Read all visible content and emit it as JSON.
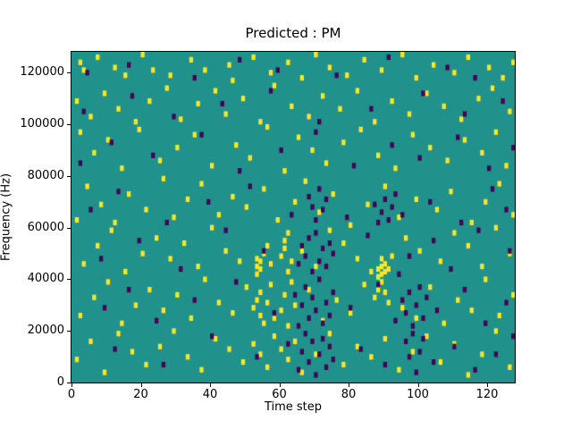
{
  "chart_data": {
    "type": "heatmap",
    "title": "Predicted : PM",
    "xlabel": "Time step",
    "ylabel": "Frequency (Hz)",
    "xlim": [
      0,
      128
    ],
    "ylim": [
      0,
      128000
    ],
    "xticks": [
      0,
      20,
      40,
      60,
      80,
      100,
      120
    ],
    "yticks": [
      0,
      20000,
      40000,
      60000,
      80000,
      100000,
      120000
    ],
    "grid": false,
    "legend": "none",
    "colors": {
      "background": "#21918c",
      "high": "#fde725",
      "low": "#440154"
    },
    "cell_units": {
      "time": "steps",
      "freq": "kHz",
      "cell_freq_height_kHz": 2
    },
    "high_cells_kHz": [
      [
        2,
        123
      ],
      [
        3,
        120
      ],
      [
        7,
        125
      ],
      [
        12,
        121
      ],
      [
        15,
        118
      ],
      [
        20,
        126
      ],
      [
        23,
        120
      ],
      [
        28,
        118
      ],
      [
        34,
        124
      ],
      [
        38,
        120
      ],
      [
        45,
        122
      ],
      [
        46,
        116
      ],
      [
        52,
        125
      ],
      [
        57,
        119
      ],
      [
        62,
        123
      ],
      [
        66,
        117
      ],
      [
        70,
        126
      ],
      [
        74,
        121
      ],
      [
        79,
        118
      ],
      [
        84,
        124
      ],
      [
        89,
        120
      ],
      [
        95,
        126
      ],
      [
        99,
        117
      ],
      [
        104,
        122
      ],
      [
        110,
        119
      ],
      [
        114,
        125
      ],
      [
        120,
        121
      ],
      [
        124,
        117
      ],
      [
        127,
        123
      ],
      [
        1,
        108
      ],
      [
        5,
        102
      ],
      [
        9,
        111
      ],
      [
        13,
        105
      ],
      [
        18,
        100
      ],
      [
        22,
        108
      ],
      [
        27,
        113
      ],
      [
        31,
        101
      ],
      [
        36,
        107
      ],
      [
        41,
        112
      ],
      [
        44,
        103
      ],
      [
        49,
        109
      ],
      [
        54,
        100
      ],
      [
        58,
        114
      ],
      [
        63,
        106
      ],
      [
        68,
        102
      ],
      [
        72,
        110
      ],
      [
        77,
        105
      ],
      [
        82,
        112
      ],
      [
        87,
        100
      ],
      [
        92,
        108
      ],
      [
        97,
        103
      ],
      [
        102,
        111
      ],
      [
        107,
        106
      ],
      [
        112,
        101
      ],
      [
        117,
        109
      ],
      [
        121,
        113
      ],
      [
        126,
        104
      ],
      [
        2,
        96
      ],
      [
        6,
        88
      ],
      [
        10,
        93
      ],
      [
        14,
        82
      ],
      [
        19,
        97
      ],
      [
        25,
        85
      ],
      [
        30,
        90
      ],
      [
        35,
        95
      ],
      [
        40,
        83
      ],
      [
        47,
        91
      ],
      [
        51,
        86
      ],
      [
        56,
        98
      ],
      [
        61,
        81
      ],
      [
        65,
        94
      ],
      [
        69,
        89
      ],
      [
        73,
        84
      ],
      [
        78,
        92
      ],
      [
        83,
        97
      ],
      [
        88,
        87
      ],
      [
        93,
        82
      ],
      [
        98,
        95
      ],
      [
        103,
        90
      ],
      [
        108,
        85
      ],
      [
        113,
        93
      ],
      [
        118,
        88
      ],
      [
        122,
        96
      ],
      [
        125,
        83
      ],
      [
        1,
        62
      ],
      [
        4,
        75
      ],
      [
        8,
        68
      ],
      [
        12,
        61
      ],
      [
        16,
        72
      ],
      [
        21,
        66
      ],
      [
        26,
        78
      ],
      [
        29,
        63
      ],
      [
        33,
        70
      ],
      [
        37,
        76
      ],
      [
        42,
        64
      ],
      [
        46,
        71
      ],
      [
        50,
        67
      ],
      [
        55,
        74
      ],
      [
        59,
        62
      ],
      [
        64,
        69
      ],
      [
        67,
        77
      ],
      [
        71,
        65
      ],
      [
        75,
        72
      ],
      [
        80,
        60
      ],
      [
        85,
        68
      ],
      [
        90,
        75
      ],
      [
        94,
        63
      ],
      [
        99,
        70
      ],
      [
        105,
        66
      ],
      [
        109,
        73
      ],
      [
        115,
        61
      ],
      [
        119,
        69
      ],
      [
        123,
        76
      ],
      [
        127,
        64
      ],
      [
        3,
        45
      ],
      [
        7,
        52
      ],
      [
        11,
        58
      ],
      [
        15,
        42
      ],
      [
        20,
        49
      ],
      [
        24,
        55
      ],
      [
        28,
        47
      ],
      [
        32,
        53
      ],
      [
        36,
        44
      ],
      [
        40,
        59
      ],
      [
        44,
        50
      ],
      [
        48,
        46
      ],
      [
        53,
        41
      ],
      [
        53,
        44
      ],
      [
        53,
        47
      ],
      [
        54,
        43
      ],
      [
        54,
        46
      ],
      [
        55,
        49
      ],
      [
        56,
        52
      ],
      [
        57,
        45
      ],
      [
        60,
        48
      ],
      [
        61,
        51
      ],
      [
        61,
        54
      ],
      [
        62,
        42
      ],
      [
        62,
        57
      ],
      [
        63,
        46
      ],
      [
        66,
        50
      ],
      [
        70,
        44
      ],
      [
        74,
        58
      ],
      [
        78,
        53
      ],
      [
        82,
        47
      ],
      [
        86,
        42
      ],
      [
        88,
        40
      ],
      [
        88,
        43
      ],
      [
        89,
        41
      ],
      [
        89,
        44
      ],
      [
        89,
        47
      ],
      [
        90,
        42
      ],
      [
        90,
        45
      ],
      [
        91,
        43
      ],
      [
        92,
        48
      ],
      [
        96,
        55
      ],
      [
        100,
        50
      ],
      [
        106,
        46
      ],
      [
        110,
        57
      ],
      [
        114,
        52
      ],
      [
        118,
        44
      ],
      [
        122,
        59
      ],
      [
        126,
        49
      ],
      [
        2,
        25
      ],
      [
        6,
        32
      ],
      [
        10,
        38
      ],
      [
        14,
        22
      ],
      [
        18,
        29
      ],
      [
        22,
        35
      ],
      [
        26,
        27
      ],
      [
        30,
        33
      ],
      [
        34,
        24
      ],
      [
        38,
        39
      ],
      [
        42,
        30
      ],
      [
        46,
        26
      ],
      [
        50,
        36
      ],
      [
        52,
        28
      ],
      [
        53,
        31
      ],
      [
        54,
        25
      ],
      [
        54,
        34
      ],
      [
        55,
        22
      ],
      [
        56,
        30
      ],
      [
        57,
        37
      ],
      [
        58,
        24
      ],
      [
        60,
        27
      ],
      [
        61,
        33
      ],
      [
        62,
        21
      ],
      [
        63,
        38
      ],
      [
        64,
        29
      ],
      [
        68,
        35
      ],
      [
        72,
        23
      ],
      [
        76,
        31
      ],
      [
        80,
        26
      ],
      [
        84,
        37
      ],
      [
        87,
        32
      ],
      [
        88,
        35
      ],
      [
        89,
        38
      ],
      [
        90,
        34
      ],
      [
        91,
        30
      ],
      [
        95,
        28
      ],
      [
        99,
        24
      ],
      [
        103,
        36
      ],
      [
        107,
        22
      ],
      [
        111,
        31
      ],
      [
        115,
        27
      ],
      [
        119,
        39
      ],
      [
        123,
        25
      ],
      [
        127,
        33
      ],
      [
        1,
        8
      ],
      [
        5,
        15
      ],
      [
        9,
        3
      ],
      [
        13,
        18
      ],
      [
        17,
        11
      ],
      [
        21,
        6
      ],
      [
        25,
        13
      ],
      [
        29,
        19
      ],
      [
        33,
        9
      ],
      [
        37,
        4
      ],
      [
        41,
        16
      ],
      [
        45,
        12
      ],
      [
        49,
        7
      ],
      [
        52,
        14
      ],
      [
        54,
        10
      ],
      [
        56,
        5
      ],
      [
        58,
        17
      ],
      [
        60,
        12
      ],
      [
        62,
        8
      ],
      [
        64,
        15
      ],
      [
        66,
        3
      ],
      [
        70,
        10
      ],
      [
        74,
        18
      ],
      [
        78,
        6
      ],
      [
        82,
        13
      ],
      [
        86,
        9
      ],
      [
        90,
        16
      ],
      [
        94,
        4
      ],
      [
        98,
        11
      ],
      [
        102,
        17
      ],
      [
        106,
        7
      ],
      [
        110,
        14
      ],
      [
        114,
        2
      ],
      [
        118,
        10
      ],
      [
        122,
        19
      ],
      [
        126,
        5
      ]
    ],
    "low_cells_kHz": [
      [
        4,
        119
      ],
      [
        16,
        122
      ],
      [
        35,
        117
      ],
      [
        48,
        124
      ],
      [
        59,
        120
      ],
      [
        76,
        118
      ],
      [
        91,
        125
      ],
      [
        108,
        121
      ],
      [
        116,
        117
      ],
      [
        3,
        104
      ],
      [
        17,
        110
      ],
      [
        29,
        102
      ],
      [
        43,
        107
      ],
      [
        57,
        112
      ],
      [
        71,
        100
      ],
      [
        86,
        105
      ],
      [
        101,
        111
      ],
      [
        113,
        103
      ],
      [
        124,
        108
      ],
      [
        2,
        84
      ],
      [
        11,
        92
      ],
      [
        23,
        87
      ],
      [
        37,
        95
      ],
      [
        48,
        81
      ],
      [
        60,
        89
      ],
      [
        70,
        96
      ],
      [
        81,
        83
      ],
      [
        92,
        91
      ],
      [
        100,
        86
      ],
      [
        111,
        94
      ],
      [
        120,
        82
      ],
      [
        127,
        90
      ],
      [
        5,
        66
      ],
      [
        13,
        73
      ],
      [
        27,
        61
      ],
      [
        39,
        69
      ],
      [
        51,
        75
      ],
      [
        63,
        64
      ],
      [
        68,
        71
      ],
      [
        69,
        67
      ],
      [
        70,
        62
      ],
      [
        71,
        74
      ],
      [
        72,
        66
      ],
      [
        73,
        70
      ],
      [
        79,
        63
      ],
      [
        87,
        68
      ],
      [
        88,
        61
      ],
      [
        89,
        65
      ],
      [
        90,
        70
      ],
      [
        91,
        62
      ],
      [
        92,
        67
      ],
      [
        93,
        72
      ],
      [
        95,
        64
      ],
      [
        103,
        69
      ],
      [
        112,
        61
      ],
      [
        121,
        74
      ],
      [
        125,
        66
      ],
      [
        8,
        47
      ],
      [
        19,
        54
      ],
      [
        31,
        43
      ],
      [
        44,
        58
      ],
      [
        55,
        50
      ],
      [
        65,
        45
      ],
      [
        66,
        52
      ],
      [
        67,
        48
      ],
      [
        68,
        55
      ],
      [
        69,
        42
      ],
      [
        70,
        57
      ],
      [
        71,
        46
      ],
      [
        72,
        51
      ],
      [
        73,
        44
      ],
      [
        74,
        53
      ],
      [
        75,
        49
      ],
      [
        85,
        56
      ],
      [
        94,
        41
      ],
      [
        97,
        48
      ],
      [
        104,
        54
      ],
      [
        109,
        43
      ],
      [
        117,
        58
      ],
      [
        126,
        50
      ],
      [
        9,
        28
      ],
      [
        16,
        35
      ],
      [
        24,
        23
      ],
      [
        35,
        31
      ],
      [
        47,
        38
      ],
      [
        58,
        26
      ],
      [
        64,
        33
      ],
      [
        65,
        21
      ],
      [
        66,
        29
      ],
      [
        67,
        36
      ],
      [
        68,
        24
      ],
      [
        69,
        32
      ],
      [
        70,
        27
      ],
      [
        71,
        39
      ],
      [
        72,
        22
      ],
      [
        73,
        30
      ],
      [
        74,
        25
      ],
      [
        75,
        34
      ],
      [
        80,
        28
      ],
      [
        88,
        37
      ],
      [
        93,
        23
      ],
      [
        95,
        31
      ],
      [
        96,
        26
      ],
      [
        97,
        34
      ],
      [
        98,
        21
      ],
      [
        99,
        29
      ],
      [
        100,
        36
      ],
      [
        101,
        24
      ],
      [
        102,
        32
      ],
      [
        105,
        27
      ],
      [
        113,
        35
      ],
      [
        119,
        22
      ],
      [
        125,
        30
      ],
      [
        12,
        12
      ],
      [
        26,
        6
      ],
      [
        40,
        17
      ],
      [
        53,
        9
      ],
      [
        62,
        14
      ],
      [
        65,
        4
      ],
      [
        66,
        11
      ],
      [
        67,
        18
      ],
      [
        68,
        7
      ],
      [
        69,
        15
      ],
      [
        70,
        2
      ],
      [
        71,
        10
      ],
      [
        72,
        16
      ],
      [
        73,
        5
      ],
      [
        74,
        13
      ],
      [
        75,
        8
      ],
      [
        83,
        12
      ],
      [
        90,
        6
      ],
      [
        96,
        15
      ],
      [
        97,
        9
      ],
      [
        98,
        18
      ],
      [
        99,
        3
      ],
      [
        100,
        11
      ],
      [
        101,
        16
      ],
      [
        104,
        7
      ],
      [
        110,
        13
      ],
      [
        116,
        4
      ],
      [
        122,
        10
      ],
      [
        127,
        17
      ]
    ]
  }
}
